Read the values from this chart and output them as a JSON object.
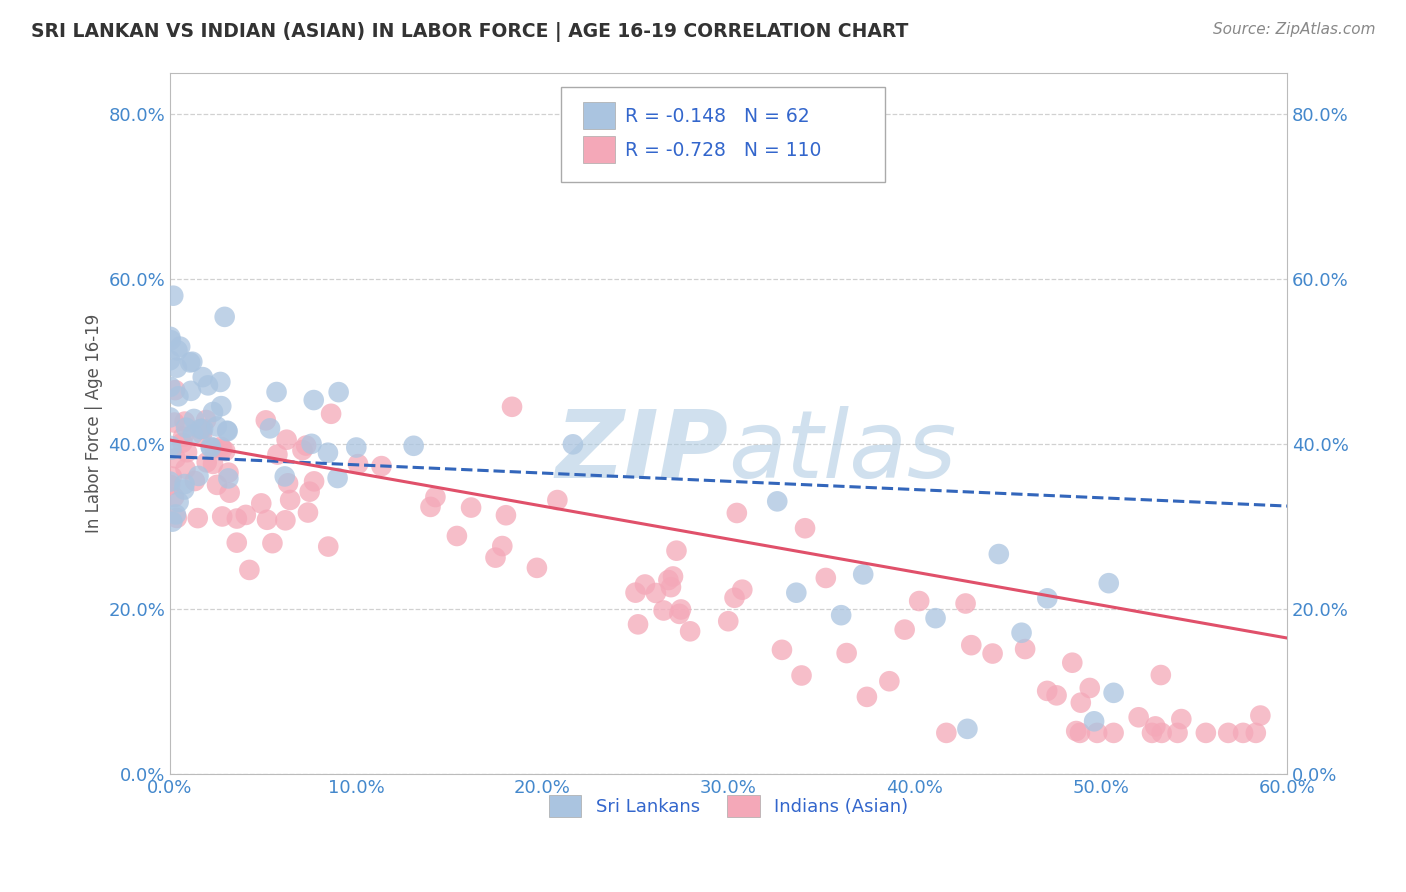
{
  "title": "SRI LANKAN VS INDIAN (ASIAN) IN LABOR FORCE | AGE 16-19 CORRELATION CHART",
  "source": "Source: ZipAtlas.com",
  "ylabel": "In Labor Force | Age 16-19",
  "xlim": [
    0.0,
    0.6
  ],
  "ylim": [
    0.0,
    0.85
  ],
  "yticks": [
    0.0,
    0.2,
    0.4,
    0.6,
    0.8
  ],
  "xticks": [
    0.0,
    0.1,
    0.2,
    0.3,
    0.4,
    0.5,
    0.6
  ],
  "sri_lankan_R": -0.148,
  "sri_lankan_N": 62,
  "indian_R": -0.728,
  "indian_N": 110,
  "sri_lankan_color": "#aac4e0",
  "indian_color": "#f4a8b8",
  "sri_lankan_line_color": "#3366bb",
  "indian_line_color": "#e0506a",
  "watermark_color": "#ccdded",
  "axis_color": "#4488cc",
  "grid_color": "#cccccc",
  "legend_text_color": "#3366cc",
  "sri_lankan_line_x": [
    0.0,
    0.6
  ],
  "sri_lankan_line_y": [
    0.385,
    0.325
  ],
  "indian_line_x": [
    0.0,
    0.6
  ],
  "indian_line_y": [
    0.405,
    0.165
  ]
}
